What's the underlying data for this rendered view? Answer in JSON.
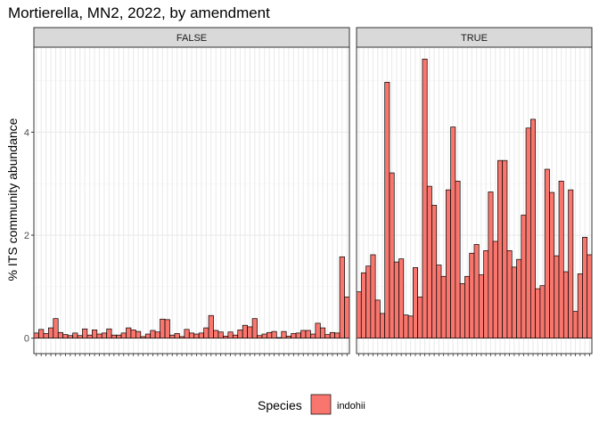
{
  "chart_data": {
    "type": "bar",
    "title": "Mortierella, MN2, 2022, by amendment",
    "ylabel": "% ITS community abundance",
    "xlabel": "",
    "ylim": [
      -0.3,
      5.65
    ],
    "yticks": [
      0,
      2,
      4
    ],
    "facet_variable": "amendment",
    "panels": [
      {
        "label": "FALSE",
        "values": [
          0.1,
          0.17,
          0.09,
          0.2,
          0.38,
          0.11,
          0.07,
          0.05,
          0.1,
          0.05,
          0.18,
          0.06,
          0.16,
          0.08,
          0.1,
          0.18,
          0.06,
          0.06,
          0.1,
          0.2,
          0.16,
          0.13,
          0.03,
          0.08,
          0.15,
          0.12,
          0.37,
          0.36,
          0.06,
          0.09,
          0.03,
          0.17,
          0.1,
          0.08,
          0.1,
          0.2,
          0.44,
          0.15,
          0.12,
          0.04,
          0.12,
          0.06,
          0.16,
          0.25,
          0.22,
          0.38,
          0.05,
          0.08,
          0.11,
          0.13,
          0.01,
          0.13,
          0.04,
          0.09,
          0.1,
          0.15,
          0.15,
          0.08,
          0.29,
          0.2,
          0.07,
          0.11,
          0.1,
          1.58,
          0.8
        ]
      },
      {
        "label": "TRUE",
        "values": [
          0.9,
          1.27,
          1.4,
          1.62,
          0.74,
          0.48,
          4.97,
          3.21,
          1.48,
          1.54,
          0.45,
          0.43,
          1.37,
          0.8,
          5.42,
          2.95,
          2.58,
          1.42,
          1.2,
          2.88,
          4.1,
          3.05,
          1.06,
          1.2,
          1.65,
          1.82,
          1.23,
          1.7,
          2.84,
          1.88,
          3.45,
          3.45,
          1.7,
          1.38,
          1.53,
          2.39,
          4.08,
          4.25,
          0.96,
          1.02,
          3.28,
          2.83,
          1.6,
          3.05,
          1.29,
          2.88,
          0.52,
          1.25,
          1.96,
          1.62
        ]
      }
    ],
    "legend": {
      "title": "Species",
      "entries": [
        {
          "name": "indohii",
          "color": "#F8766D"
        }
      ],
      "position": "bottom"
    },
    "colors": {
      "bar_fill": "#F8766D",
      "bar_stroke": "#000000",
      "strip_fill": "#D9D9D9",
      "strip_border": "#333333",
      "panel_border": "#333333",
      "grid_major": "#EBEBEB",
      "grid_minor": "#F5F5F5"
    },
    "grid": true
  }
}
